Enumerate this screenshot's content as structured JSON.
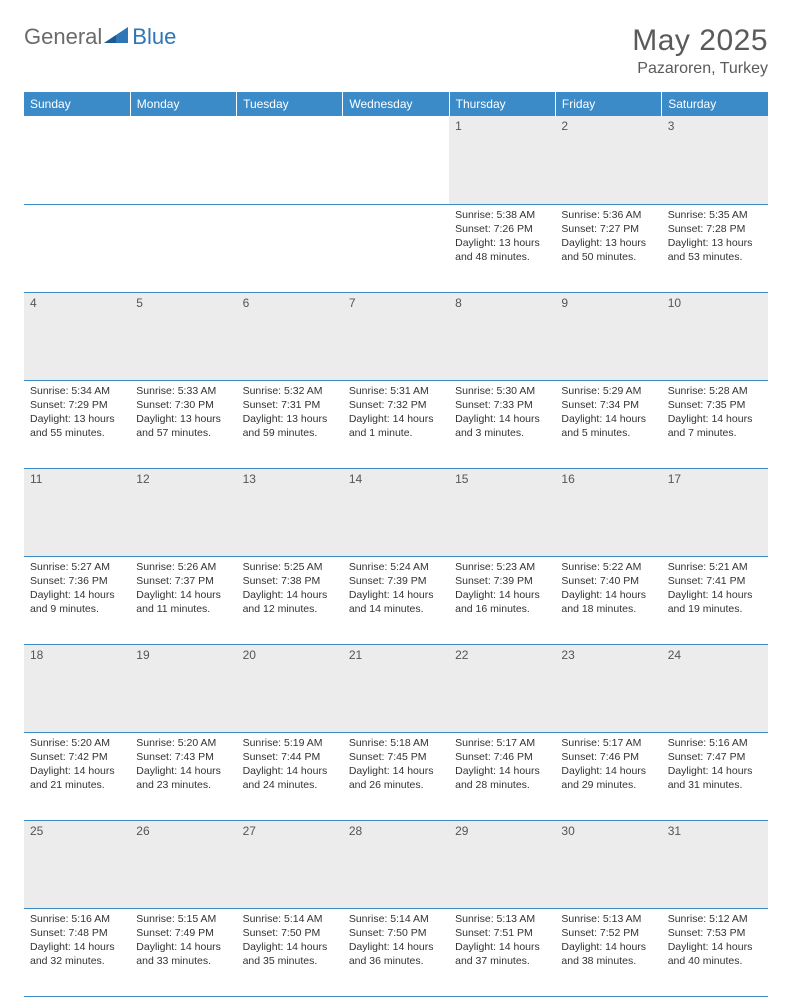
{
  "brand": {
    "part1": "General",
    "part2": "Blue"
  },
  "title": "May 2025",
  "location": "Pazaroren, Turkey",
  "colors": {
    "header_bg": "#3b8bc9",
    "header_text": "#ffffff",
    "daynum_bg": "#ececec",
    "border": "#3b8bc9",
    "logo_gray": "#6b6b6b",
    "logo_blue": "#2f76b6"
  },
  "weekdays": [
    "Sunday",
    "Monday",
    "Tuesday",
    "Wednesday",
    "Thursday",
    "Friday",
    "Saturday"
  ],
  "weeks": [
    [
      null,
      null,
      null,
      null,
      {
        "n": "1",
        "sr": "5:38 AM",
        "ss": "7:26 PM",
        "dl": "13 hours and 48 minutes."
      },
      {
        "n": "2",
        "sr": "5:36 AM",
        "ss": "7:27 PM",
        "dl": "13 hours and 50 minutes."
      },
      {
        "n": "3",
        "sr": "5:35 AM",
        "ss": "7:28 PM",
        "dl": "13 hours and 53 minutes."
      }
    ],
    [
      {
        "n": "4",
        "sr": "5:34 AM",
        "ss": "7:29 PM",
        "dl": "13 hours and 55 minutes."
      },
      {
        "n": "5",
        "sr": "5:33 AM",
        "ss": "7:30 PM",
        "dl": "13 hours and 57 minutes."
      },
      {
        "n": "6",
        "sr": "5:32 AM",
        "ss": "7:31 PM",
        "dl": "13 hours and 59 minutes."
      },
      {
        "n": "7",
        "sr": "5:31 AM",
        "ss": "7:32 PM",
        "dl": "14 hours and 1 minute."
      },
      {
        "n": "8",
        "sr": "5:30 AM",
        "ss": "7:33 PM",
        "dl": "14 hours and 3 minutes."
      },
      {
        "n": "9",
        "sr": "5:29 AM",
        "ss": "7:34 PM",
        "dl": "14 hours and 5 minutes."
      },
      {
        "n": "10",
        "sr": "5:28 AM",
        "ss": "7:35 PM",
        "dl": "14 hours and 7 minutes."
      }
    ],
    [
      {
        "n": "11",
        "sr": "5:27 AM",
        "ss": "7:36 PM",
        "dl": "14 hours and 9 minutes."
      },
      {
        "n": "12",
        "sr": "5:26 AM",
        "ss": "7:37 PM",
        "dl": "14 hours and 11 minutes."
      },
      {
        "n": "13",
        "sr": "5:25 AM",
        "ss": "7:38 PM",
        "dl": "14 hours and 12 minutes."
      },
      {
        "n": "14",
        "sr": "5:24 AM",
        "ss": "7:39 PM",
        "dl": "14 hours and 14 minutes."
      },
      {
        "n": "15",
        "sr": "5:23 AM",
        "ss": "7:39 PM",
        "dl": "14 hours and 16 minutes."
      },
      {
        "n": "16",
        "sr": "5:22 AM",
        "ss": "7:40 PM",
        "dl": "14 hours and 18 minutes."
      },
      {
        "n": "17",
        "sr": "5:21 AM",
        "ss": "7:41 PM",
        "dl": "14 hours and 19 minutes."
      }
    ],
    [
      {
        "n": "18",
        "sr": "5:20 AM",
        "ss": "7:42 PM",
        "dl": "14 hours and 21 minutes."
      },
      {
        "n": "19",
        "sr": "5:20 AM",
        "ss": "7:43 PM",
        "dl": "14 hours and 23 minutes."
      },
      {
        "n": "20",
        "sr": "5:19 AM",
        "ss": "7:44 PM",
        "dl": "14 hours and 24 minutes."
      },
      {
        "n": "21",
        "sr": "5:18 AM",
        "ss": "7:45 PM",
        "dl": "14 hours and 26 minutes."
      },
      {
        "n": "22",
        "sr": "5:17 AM",
        "ss": "7:46 PM",
        "dl": "14 hours and 28 minutes."
      },
      {
        "n": "23",
        "sr": "5:17 AM",
        "ss": "7:46 PM",
        "dl": "14 hours and 29 minutes."
      },
      {
        "n": "24",
        "sr": "5:16 AM",
        "ss": "7:47 PM",
        "dl": "14 hours and 31 minutes."
      }
    ],
    [
      {
        "n": "25",
        "sr": "5:16 AM",
        "ss": "7:48 PM",
        "dl": "14 hours and 32 minutes."
      },
      {
        "n": "26",
        "sr": "5:15 AM",
        "ss": "7:49 PM",
        "dl": "14 hours and 33 minutes."
      },
      {
        "n": "27",
        "sr": "5:14 AM",
        "ss": "7:50 PM",
        "dl": "14 hours and 35 minutes."
      },
      {
        "n": "28",
        "sr": "5:14 AM",
        "ss": "7:50 PM",
        "dl": "14 hours and 36 minutes."
      },
      {
        "n": "29",
        "sr": "5:13 AM",
        "ss": "7:51 PM",
        "dl": "14 hours and 37 minutes."
      },
      {
        "n": "30",
        "sr": "5:13 AM",
        "ss": "7:52 PM",
        "dl": "14 hours and 38 minutes."
      },
      {
        "n": "31",
        "sr": "5:12 AM",
        "ss": "7:53 PM",
        "dl": "14 hours and 40 minutes."
      }
    ]
  ],
  "labels": {
    "sunrise": "Sunrise:",
    "sunset": "Sunset:",
    "daylight": "Daylight:"
  }
}
